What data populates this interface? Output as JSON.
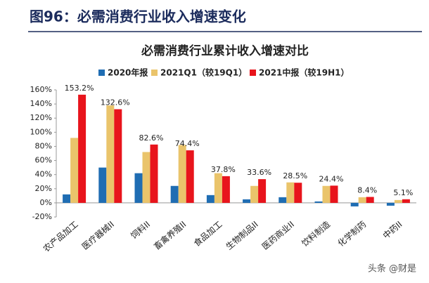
{
  "header": {
    "title": "图96：必需消费行业收入增速变化"
  },
  "chart_data": {
    "type": "bar",
    "title": "必需消费行业累计收入增速对比",
    "categories": [
      "农产品加工",
      "医疗器械II",
      "饲料II",
      "畜禽养殖II",
      "食品加工",
      "生物制品II",
      "医药商业II",
      "饮料制造",
      "化学制药",
      "中药II"
    ],
    "series": [
      {
        "name": "2020年报",
        "color": "#1f6db3",
        "values": [
          12,
          50,
          42,
          24,
          11,
          5,
          8,
          2,
          -5,
          -4
        ]
      },
      {
        "name": "2021Q1（较19Q1）",
        "color": "#eac46b",
        "values": [
          92,
          138,
          72,
          82,
          42,
          24,
          29,
          24,
          8,
          4
        ]
      },
      {
        "name": "2021中报（较19H1）",
        "color": "#e8141c",
        "values": [
          153.2,
          132.6,
          82.6,
          74.4,
          37.8,
          33.6,
          28.5,
          24.4,
          8.4,
          5.1
        ],
        "value_labels": [
          "153.2%",
          "132.6%",
          "82.6%",
          "74.4%",
          "37.8%",
          "33.6%",
          "28.5%",
          "24.4%",
          "8.4%",
          "5.1%"
        ]
      }
    ],
    "ylim": [
      -20,
      160
    ],
    "yticks": [
      {
        "value": -20,
        "label": "-20%"
      },
      {
        "value": 0,
        "label": "0%"
      },
      {
        "value": 20,
        "label": "20%"
      },
      {
        "value": 40,
        "label": "40%"
      },
      {
        "value": 60,
        "label": "60%"
      },
      {
        "value": 80,
        "label": "80%"
      },
      {
        "value": 100,
        "label": "100%"
      },
      {
        "value": 120,
        "label": "120%"
      },
      {
        "value": 140,
        "label": "140%"
      },
      {
        "value": 160,
        "label": "160%"
      }
    ],
    "legend": "top"
  },
  "watermark": "头条 @财是"
}
